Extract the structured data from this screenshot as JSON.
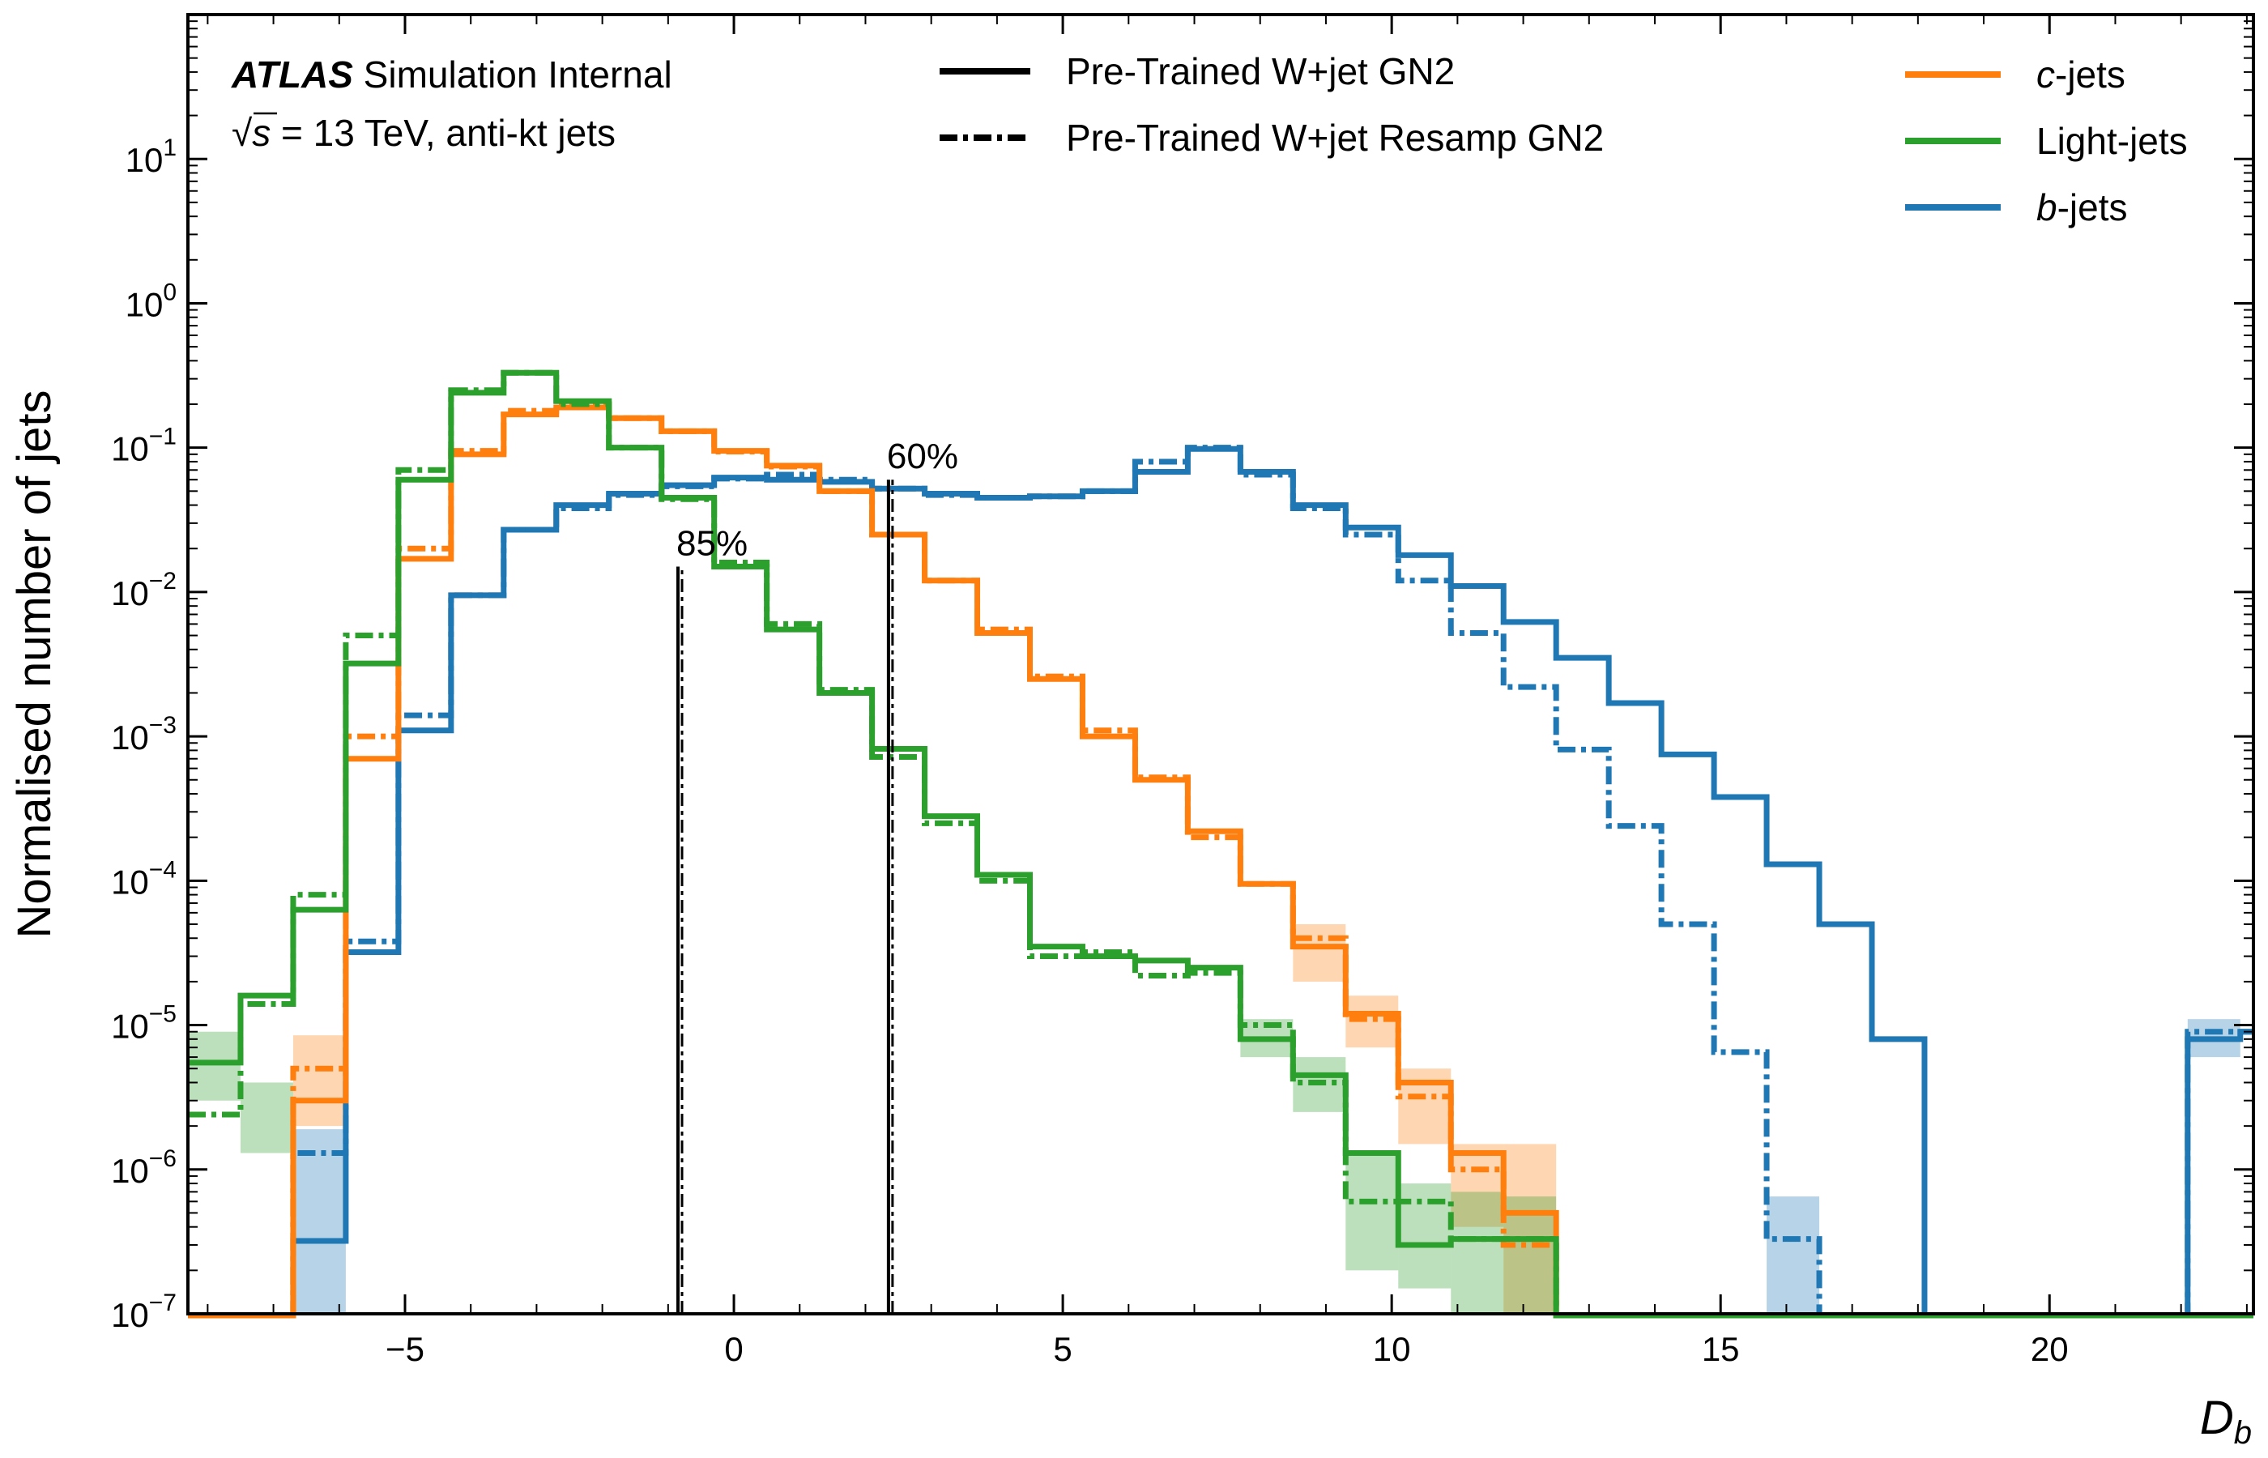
{
  "chart_data": {
    "type": "line",
    "xlabel": "D",
    "xlabel_sub": "b",
    "ylabel": "Normalised number of jets",
    "xlim": [
      -8.3,
      23.1
    ],
    "ylim": [
      1e-07,
      100
    ],
    "yscale": "log",
    "grid": false,
    "x_ticks": [
      -5,
      0,
      5,
      10,
      15,
      20
    ],
    "x_tick_labels": [
      "−5",
      "0",
      "5",
      "10",
      "15",
      "20"
    ],
    "y_ticks": [
      1e-07,
      1e-06,
      1e-05,
      0.0001,
      0.001,
      0.01,
      0.1,
      1.0,
      10.0
    ],
    "y_tick_labels": [
      {
        "base": "10",
        "exp": "−7"
      },
      {
        "base": "10",
        "exp": "−6"
      },
      {
        "base": "10",
        "exp": "−5"
      },
      {
        "base": "10",
        "exp": "−4"
      },
      {
        "base": "10",
        "exp": "−3"
      },
      {
        "base": "10",
        "exp": "−2"
      },
      {
        "base": "10",
        "exp": "−1"
      },
      {
        "base": "10",
        "exp": "0"
      },
      {
        "base": "10",
        "exp": "1"
      }
    ],
    "annotations": {
      "atlas_bold": "ATLAS",
      "atlas_rest": " Simulation Internal",
      "line2_sqrt": "√",
      "line2_s": "s",
      "line2_rest": " = 13 TeV, anti-kt jets"
    },
    "style_legend": [
      {
        "label": "Pre-Trained W+jet GN2",
        "style": "solid"
      },
      {
        "label": "Pre-Trained W+jet Resamp GN2",
        "style": "dashdot"
      }
    ],
    "flavour_legend": [
      {
        "label_ital": "c",
        "label_rest": "-jets",
        "color": "#ff7f0e"
      },
      {
        "label_ital": "",
        "label_rest": "Light-jets",
        "color": "#2ca02c"
      },
      {
        "label_ital": "b",
        "label_rest": "-jets",
        "color": "#1f77b4"
      }
    ],
    "working_points": [
      {
        "label": "85%",
        "x": -0.85,
        "ymax": 0.015
      },
      {
        "label": "60%",
        "x": 2.35,
        "ymax": 0.06
      }
    ],
    "bin_edges": [
      -8.3,
      -7.5,
      -6.7,
      -5.9,
      -5.1,
      -4.3,
      -3.5,
      -2.7,
      -1.9,
      -1.1,
      -0.3,
      0.5,
      1.3,
      2.1,
      2.9,
      3.7,
      4.5,
      5.3,
      6.1,
      6.9,
      7.7,
      8.5,
      9.3,
      10.1,
      10.9,
      11.7,
      12.5,
      13.3,
      14.1,
      14.9,
      15.7,
      16.5,
      17.3,
      18.1,
      18.9,
      19.7,
      20.5,
      21.3,
      22.1,
      22.9,
      23.1
    ],
    "series": [
      {
        "name": "b-jets",
        "flavour": "b",
        "style": "solid",
        "color": "#1f77b4",
        "values": [
          0,
          0,
          3.2e-07,
          3.2e-05,
          0.0011,
          0.0095,
          0.027,
          0.04,
          0.048,
          0.055,
          0.062,
          0.06,
          0.058,
          0.052,
          0.048,
          0.045,
          0.046,
          0.05,
          0.068,
          0.098,
          0.068,
          0.04,
          0.028,
          0.018,
          0.011,
          0.0062,
          0.0035,
          0.0017,
          0.00075,
          0.00038,
          0.00013,
          5e-05,
          8e-06,
          0,
          0,
          0,
          0,
          0,
          8e-06,
          9e-06
        ]
      },
      {
        "name": "b-jets resamp",
        "flavour": "b",
        "style": "dashdot",
        "color": "#1f77b4",
        "values": [
          0,
          0,
          1.3e-06,
          3.8e-05,
          0.0014,
          0.0095,
          0.027,
          0.038,
          0.047,
          0.054,
          0.061,
          0.065,
          0.06,
          0.052,
          0.047,
          0.045,
          0.046,
          0.05,
          0.08,
          0.1,
          0.065,
          0.038,
          0.025,
          0.012,
          0.0052,
          0.0022,
          0.00081,
          0.00024,
          5e-05,
          6.5e-06,
          3.3e-07,
          0,
          0,
          0,
          0,
          0,
          0,
          0,
          9e-06,
          9e-06
        ],
        "err_bins": [
          {
            "i": 2,
            "lo": 1e-07,
            "hi": 1.9e-06
          },
          {
            "i": 30,
            "lo": 1e-07,
            "hi": 6.5e-07
          },
          {
            "i": 38,
            "lo": 6e-06,
            "hi": 1.1e-05
          }
        ]
      },
      {
        "name": "c-jets",
        "flavour": "c",
        "style": "solid",
        "color": "#ff7f0e",
        "values": [
          0,
          0,
          3e-06,
          0.0007,
          0.017,
          0.09,
          0.17,
          0.19,
          0.16,
          0.13,
          0.095,
          0.075,
          0.05,
          0.025,
          0.012,
          0.0052,
          0.0025,
          0.001,
          0.0005,
          0.00022,
          9.5e-05,
          3.5e-05,
          1.2e-05,
          4e-06,
          1.3e-06,
          5e-07,
          0,
          0,
          0,
          0,
          0,
          0,
          0,
          0,
          0,
          0,
          0,
          0,
          0,
          0
        ]
      },
      {
        "name": "c-jets resamp",
        "flavour": "c",
        "style": "dashdot",
        "color": "#ff7f0e",
        "values": [
          0,
          0,
          5e-06,
          0.001,
          0.02,
          0.095,
          0.18,
          0.2,
          0.16,
          0.13,
          0.094,
          0.074,
          0.05,
          0.025,
          0.012,
          0.0055,
          0.0026,
          0.0011,
          0.00052,
          0.0002,
          9.5e-05,
          4e-05,
          1.1e-05,
          3.2e-06,
          1e-06,
          3e-07,
          0,
          0,
          0,
          0,
          0,
          0,
          0,
          0,
          0,
          0,
          0,
          0,
          0,
          0
        ],
        "err_bins": [
          {
            "i": 2,
            "lo": 2e-06,
            "hi": 8.5e-06
          },
          {
            "i": 21,
            "lo": 2e-05,
            "hi": 5e-05
          },
          {
            "i": 22,
            "lo": 7e-06,
            "hi": 1.6e-05
          },
          {
            "i": 23,
            "lo": 1.5e-06,
            "hi": 5e-06
          },
          {
            "i": 24,
            "lo": 4e-07,
            "hi": 1.5e-06
          },
          {
            "i": 25,
            "lo": 1e-07,
            "hi": 1.5e-06
          }
        ]
      },
      {
        "name": "Light-jets",
        "flavour": "light",
        "style": "solid",
        "color": "#2ca02c",
        "values": [
          5.5e-06,
          1.6e-05,
          6.3e-05,
          0.0032,
          0.06,
          0.24,
          0.33,
          0.21,
          0.1,
          0.045,
          0.015,
          0.0055,
          0.002,
          0.00082,
          0.00028,
          0.00011,
          3.5e-05,
          3e-05,
          2.8e-05,
          2.5e-05,
          8e-06,
          4.5e-06,
          1.3e-06,
          3e-07,
          3.3e-07,
          3.3e-07,
          0,
          0,
          0,
          0,
          0,
          0,
          0,
          0,
          0,
          0,
          0,
          0,
          0,
          0
        ]
      },
      {
        "name": "Light-jets resamp",
        "flavour": "light",
        "style": "dashdot",
        "color": "#2ca02c",
        "values": [
          2.4e-06,
          1.4e-05,
          8e-05,
          0.005,
          0.07,
          0.25,
          0.33,
          0.2,
          0.1,
          0.044,
          0.016,
          0.006,
          0.0021,
          0.00072,
          0.00025,
          0.0001,
          3e-05,
          3.2e-05,
          2.2e-05,
          2.3e-05,
          1e-05,
          4e-06,
          6e-07,
          6e-07,
          3.3e-07,
          3.3e-07,
          0,
          0,
          0,
          0,
          0,
          0,
          0,
          0,
          0,
          0,
          0,
          0,
          0,
          0
        ],
        "err_bins": [
          {
            "i": 0,
            "lo": 3e-06,
            "hi": 9e-06
          },
          {
            "i": 1,
            "lo": 1.3e-06,
            "hi": 4e-06
          },
          {
            "i": 20,
            "lo": 6e-06,
            "hi": 1.1e-05
          },
          {
            "i": 21,
            "lo": 2.5e-06,
            "hi": 6e-06
          },
          {
            "i": 22,
            "lo": 2e-07,
            "hi": 1.3e-06
          },
          {
            "i": 23,
            "lo": 1.5e-07,
            "hi": 8e-07
          },
          {
            "i": 24,
            "lo": 1e-07,
            "hi": 7e-07
          },
          {
            "i": 25,
            "lo": 1e-07,
            "hi": 6.5e-07
          }
        ]
      }
    ]
  }
}
